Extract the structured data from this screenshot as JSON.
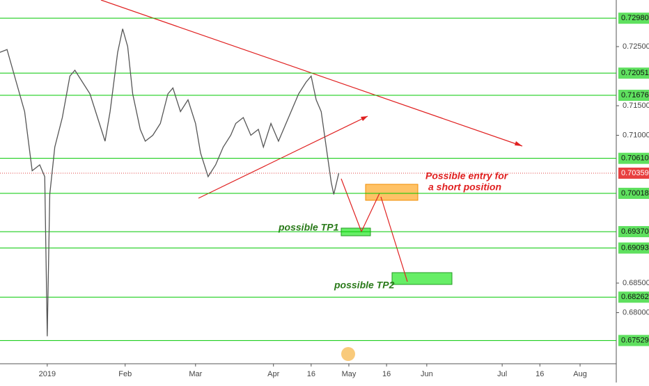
{
  "chart_data": {
    "type": "line",
    "x": [
      -19,
      -16,
      -13,
      -9,
      -6,
      -3,
      -1,
      0,
      1,
      3,
      6,
      9,
      11,
      14,
      17,
      20,
      23,
      25,
      28,
      30,
      32,
      34,
      37,
      39,
      42,
      45,
      48,
      50,
      53,
      56,
      59,
      61,
      64,
      67,
      70,
      73,
      75,
      78,
      81,
      84,
      86,
      89,
      92,
      95,
      98,
      100,
      103,
      105,
      107,
      109,
      111,
      113,
      114,
      116
    ],
    "values": [
      0.724,
      0.7245,
      0.72,
      0.714,
      0.704,
      0.705,
      0.703,
      0.676,
      0.7,
      0.708,
      0.713,
      0.72,
      0.721,
      0.719,
      0.717,
      0.713,
      0.709,
      0.714,
      0.724,
      0.728,
      0.725,
      0.717,
      0.711,
      0.709,
      0.71,
      0.712,
      0.717,
      0.718,
      0.714,
      0.716,
      0.712,
      0.707,
      0.703,
      0.705,
      0.708,
      0.71,
      0.712,
      0.713,
      0.71,
      0.711,
      0.708,
      0.712,
      0.709,
      0.712,
      0.715,
      0.717,
      0.719,
      0.72,
      0.716,
      0.714,
      0.708,
      0.702,
      0.7,
      0.7036
    ],
    "color": "#555555",
    "xlim": [
      -18.8,
      226.4
    ],
    "xticks": [
      {
        "value": 0,
        "label": "2019"
      },
      {
        "value": 31,
        "label": "Feb"
      },
      {
        "value": 59,
        "label": "Mar"
      },
      {
        "value": 90,
        "label": "Apr"
      },
      {
        "value": 105,
        "label": "16"
      },
      {
        "value": 120,
        "label": "May"
      },
      {
        "value": 135,
        "label": "16"
      },
      {
        "value": 151,
        "label": "Jun"
      },
      {
        "value": 181,
        "label": "Jul"
      },
      {
        "value": 196,
        "label": "16"
      },
      {
        "value": 212,
        "label": "Aug"
      }
    ],
    "ylim": [
      0.67171,
      0.73288
    ],
    "yticks": [
      {
        "value": 0.725,
        "label": "0.72500"
      },
      {
        "value": 0.715,
        "label": "0.71500"
      },
      {
        "value": 0.71,
        "label": "0.71000"
      },
      {
        "value": 0.685,
        "label": "0.68500"
      },
      {
        "value": 0.68,
        "label": "0.68000"
      }
    ],
    "levels": [
      {
        "value": 0.7298,
        "label": "0.72980"
      },
      {
        "value": 0.72051,
        "label": "0.72051"
      },
      {
        "value": 0.71676,
        "label": "0.71676"
      },
      {
        "value": 0.7061,
        "label": "0.70610"
      },
      {
        "value": 0.70018,
        "label": "0.70018"
      },
      {
        "value": 0.6937,
        "label": "0.69370"
      },
      {
        "value": 0.69093,
        "label": "0.69093"
      },
      {
        "value": 0.68262,
        "label": "0.68262"
      },
      {
        "value": 0.67529,
        "label": "0.67529"
      }
    ],
    "level_color": "#00c800",
    "current_price": {
      "value": 0.70359,
      "label": "0.70359"
    },
    "annotations": [
      "Possible entry for",
      "a short position",
      "possible TP1",
      "possible TP2"
    ]
  }
}
